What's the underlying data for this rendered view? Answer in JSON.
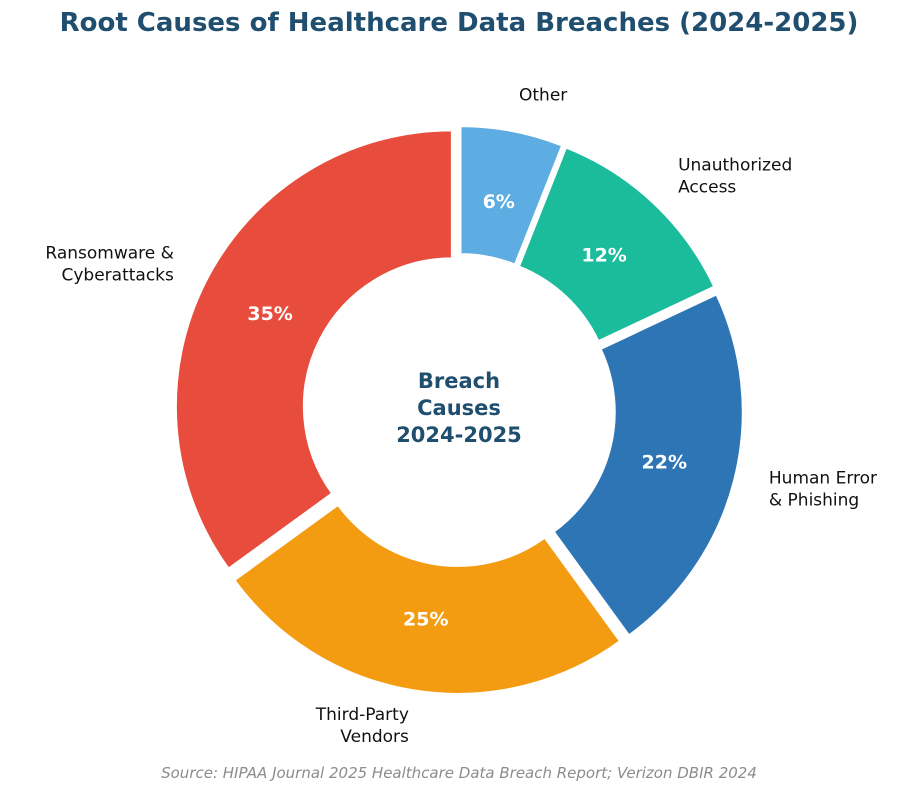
{
  "chart_data": {
    "type": "pie",
    "title": "Root Causes of Healthcare Data Breaches (2024-2025)",
    "center_label": [
      "Breach",
      "Causes",
      "2024-2025"
    ],
    "source": "Source: HIPAA Journal 2025 Healthcare Data Breach Report; Verizon DBIR 2024",
    "slices": [
      {
        "label": [
          "Ransomware &",
          "Cyberattacks"
        ],
        "value": 35,
        "pct_label": "35%",
        "color": "#e74c3c"
      },
      {
        "label": [
          "Third-Party",
          "Vendors"
        ],
        "value": 25,
        "pct_label": "25%",
        "color": "#f39c12"
      },
      {
        "label": [
          "Human Error",
          "& Phishing"
        ],
        "value": 22,
        "pct_label": "22%",
        "color": "#2e75b6"
      },
      {
        "label": [
          "Unauthorized",
          "Access"
        ],
        "value": 12,
        "pct_label": "12%",
        "color": "#1abc9c"
      },
      {
        "label": [
          "Other"
        ],
        "value": 6,
        "pct_label": "6%",
        "color": "#5dade2"
      }
    ]
  }
}
